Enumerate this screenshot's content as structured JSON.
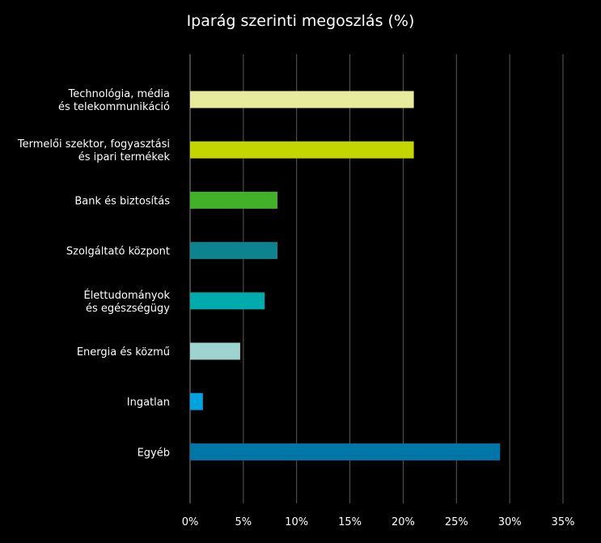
{
  "chart_data": {
    "type": "bar",
    "orientation": "horizontal",
    "title": "Iparág szerinti megoszlás (%)",
    "categories": [
      [
        "Technológia, média",
        "és telekommunikáció"
      ],
      [
        "Termelői szektor, fogyasztási",
        "és ipari termékek"
      ],
      [
        "Bank és biztosítás"
      ],
      [
        "Szolgáltató központ"
      ],
      [
        "Élettudományok",
        "és egészségügy"
      ],
      [
        "Energia és közmű"
      ],
      [
        "Ingatlan"
      ],
      [
        "Egyéb"
      ]
    ],
    "values": [
      21,
      21,
      8.2,
      8.2,
      7,
      4.7,
      1.2,
      29.1
    ],
    "colors": [
      "#e6ec9b",
      "#c4d600",
      "#43b02a",
      "#0d8390",
      "#00abab",
      "#9dd4cf",
      "#00a3e0",
      "#0076a8"
    ],
    "xlim": [
      0,
      35
    ],
    "xticks": [
      0,
      5,
      10,
      15,
      20,
      25,
      30,
      35
    ],
    "xtick_labels": [
      "0%",
      "5%",
      "10%",
      "15%",
      "20%",
      "25%",
      "30%",
      "35%"
    ],
    "grid": true,
    "legend": "none"
  }
}
